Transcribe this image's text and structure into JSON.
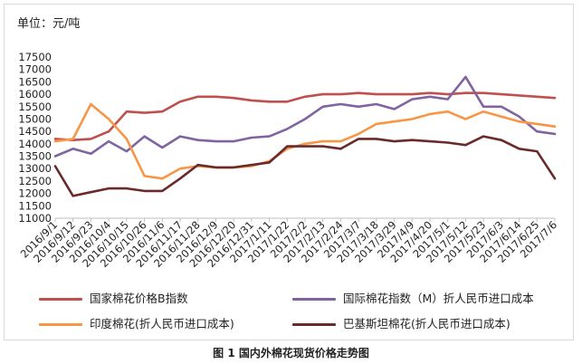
{
  "page": {
    "unit_label": "单位：元/吨",
    "caption": "图 1 国内外棉花现货价格走势图"
  },
  "chart_data": {
    "type": "line",
    "title": "",
    "xlabel": "",
    "ylabel": "",
    "ylim": [
      11000,
      17500
    ],
    "yticks": [
      "11000",
      "11500",
      "12000",
      "12500",
      "13000",
      "13500",
      "14000",
      "14500",
      "15000",
      "15500",
      "16000",
      "16500",
      "17000",
      "17500"
    ],
    "x": [
      "2016/9/1",
      "2016/9/12",
      "2016/9/23",
      "2016/10/4",
      "2016/10/15",
      "2016/10/26",
      "2016/11/6",
      "2016/11/17",
      "2016/11/28",
      "2016/12/9",
      "2016/12/20",
      "2016/12/31",
      "2017/1/11",
      "2017/1/22",
      "2017/2/2",
      "2017/2/13",
      "2017/2/24",
      "2017/3/7",
      "2017/3/18",
      "2017/3/29",
      "2017/4/9",
      "2017/4/20",
      "2017/5/1",
      "2017/5/12",
      "2017/5/23",
      "2017/6/3",
      "2017/6/14",
      "2017/6/25",
      "2017/7/6"
    ],
    "grid": false,
    "legend_position": "bottom",
    "series": [
      {
        "name": "国家棉花价格B指数",
        "color": "#c0504d",
        "values": [
          14200,
          14150,
          14200,
          14500,
          15300,
          15250,
          15300,
          15700,
          15900,
          15900,
          15850,
          15750,
          15700,
          15700,
          15900,
          16000,
          16000,
          16050,
          16000,
          16000,
          16000,
          16050,
          16000,
          16050,
          16050,
          16000,
          15950,
          15900,
          15850
        ]
      },
      {
        "name": "国际棉花指数（M）折人民币进口成本",
        "color": "#8064a2",
        "values": [
          13500,
          13800,
          13600,
          14100,
          13700,
          14300,
          13850,
          14300,
          14150,
          14100,
          14100,
          14250,
          14300,
          14600,
          15000,
          15500,
          15600,
          15500,
          15600,
          15400,
          15800,
          15900,
          15800,
          16700,
          15500,
          15500,
          15100,
          14500,
          14400
        ]
      },
      {
        "name": "印度棉花(折人民币进口成本)",
        "color": "#f79646",
        "values": [
          14100,
          14200,
          15600,
          15000,
          14200,
          12700,
          12600,
          13000,
          13100,
          13050,
          13050,
          13100,
          13300,
          13800,
          14000,
          14100,
          14100,
          14400,
          14800,
          14900,
          15000,
          15200,
          15300,
          15000,
          15300,
          15100,
          14900,
          14800,
          14700
        ]
      },
      {
        "name": "巴基斯坦棉花(折人民币进口成本)",
        "color": "#6b2a2a",
        "values": [
          13100,
          11900,
          12050,
          12200,
          12200,
          12100,
          12100,
          12600,
          13150,
          13050,
          13050,
          13150,
          13250,
          13900,
          13900,
          13900,
          13800,
          14200,
          14200,
          14100,
          14150,
          14100,
          14050,
          13950,
          14300,
          14150,
          13800,
          13700,
          12600
        ]
      }
    ]
  }
}
